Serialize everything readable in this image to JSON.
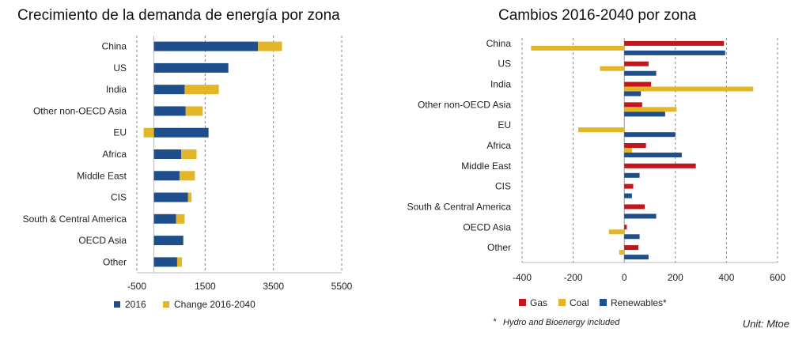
{
  "chart_data": [
    {
      "type": "bar",
      "orientation": "horizontal",
      "stacked": true,
      "title": "Crecimiento de la demanda de energía por zona",
      "categories": [
        "China",
        "US",
        "India",
        "Other non-OECD Asia",
        "EU",
        "Africa",
        "Middle East",
        "CIS",
        "South & Central America",
        "OECD Asia",
        "Other"
      ],
      "series": [
        {
          "name": "2016",
          "color": "#1f4e8c",
          "values": [
            3050,
            2180,
            900,
            930,
            1600,
            800,
            750,
            1000,
            650,
            860,
            680
          ]
        },
        {
          "name": "Change 2016-2040",
          "color": "#e3b62a",
          "values": [
            700,
            0,
            1000,
            500,
            -300,
            450,
            450,
            100,
            250,
            0,
            140
          ]
        }
      ],
      "xlim": [
        -500,
        5500
      ],
      "xticks": [
        "-500",
        "1500",
        "3500",
        "5500"
      ],
      "xtick_values": [
        -500,
        1500,
        3500,
        5500
      ],
      "grid": "vertical-dashed",
      "legend": "bottom"
    },
    {
      "type": "bar",
      "orientation": "horizontal",
      "grouped": true,
      "title": "Cambios 2016-2040 por zona",
      "categories": [
        "China",
        "US",
        "India",
        "Other non-OECD Asia",
        "EU",
        "Africa",
        "Middle East",
        "CIS",
        "South & Central America",
        "OECD Asia",
        "Other"
      ],
      "series": [
        {
          "name": "Gas",
          "color": "#c0161c",
          "values": [
            390,
            95,
            105,
            70,
            0,
            85,
            280,
            35,
            80,
            10,
            55
          ]
        },
        {
          "name": "Coal",
          "color": "#e3b62a",
          "values": [
            -365,
            -95,
            505,
            205,
            -180,
            30,
            0,
            0,
            0,
            -60,
            -20
          ]
        },
        {
          "name": "Renewables*",
          "color": "#1f4e8c",
          "values": [
            395,
            125,
            65,
            160,
            200,
            225,
            60,
            30,
            125,
            60,
            95
          ]
        }
      ],
      "xlim": [
        -400,
        600
      ],
      "xticks": [
        "-400",
        "-200",
        "0",
        "200",
        "400",
        "600"
      ],
      "xtick_values": [
        -400,
        -200,
        0,
        200,
        400,
        600
      ],
      "grid": "vertical-dashed",
      "legend": "bottom",
      "footnote_mark": "*",
      "footnote_text": "Hydro and Bioenergy included",
      "unit": "Unit: Mtoe"
    }
  ]
}
